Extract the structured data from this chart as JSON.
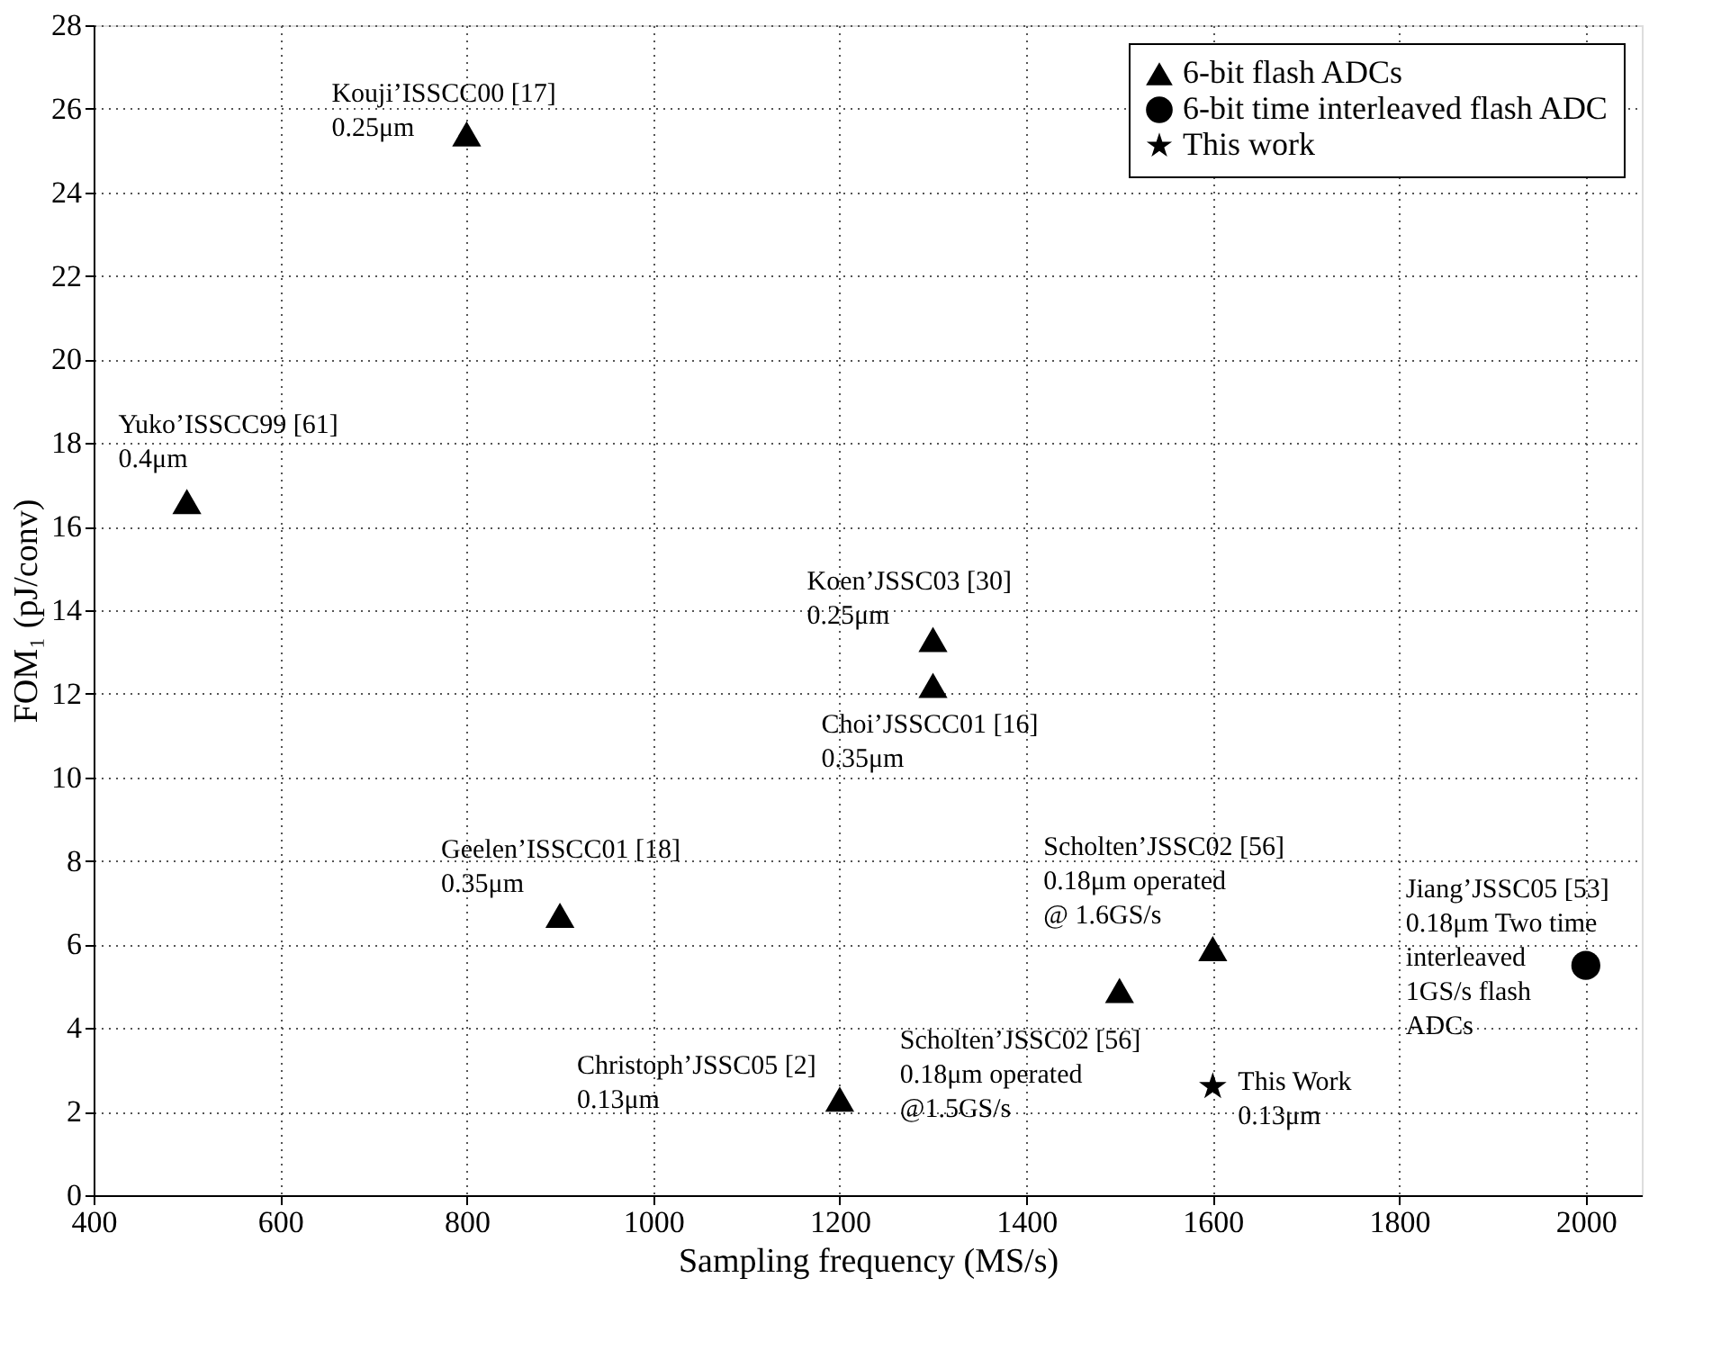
{
  "chart_data": {
    "type": "scatter",
    "xlabel": "Sampling frequency (MS/s)",
    "ylabel": "FOM₁ (pJ/conv)",
    "xlim": [
      400,
      2060
    ],
    "xticks": [
      400,
      600,
      800,
      1000,
      1200,
      1400,
      1600,
      1800,
      2000
    ],
    "ylim": [
      0,
      28
    ],
    "yticks": [
      0,
      2,
      4,
      6,
      8,
      10,
      12,
      14,
      16,
      18,
      20,
      22,
      24,
      26,
      28
    ],
    "grid": true,
    "legend": "top right",
    "series": [
      {
        "name": "6-bit flash ADCs",
        "color": "#000000",
        "marker": "triangle",
        "x": [
          500,
          800,
          900,
          1200,
          1300,
          1300,
          1500,
          1600
        ],
        "values": [
          16.6,
          25.4,
          6.7,
          2.3,
          13.3,
          12.2,
          4.9,
          5.9
        ]
      },
      {
        "name": "6-bit time interleaved flash ADC",
        "color": "#000000",
        "marker": "circle",
        "x": [
          2000
        ],
        "values": [
          5.5
        ]
      },
      {
        "name": "This work",
        "color": "#000000",
        "marker": "star",
        "x": [
          1600
        ],
        "values": [
          2.6
        ]
      }
    ],
    "annotations": [
      {
        "text": "Kouji’ISSCC00 [17]\n0.25μm",
        "x": 800,
        "y": 25.4
      },
      {
        "text": "Yuko’ISSCC99 [61]\n0.4μm",
        "x": 500,
        "y": 16.6
      },
      {
        "text": "Koen’JSSC03 [30]\n0.25μm",
        "x": 1300,
        "y": 13.3
      },
      {
        "text": "Choi’JSSCC01 [16]\n0.35μm",
        "x": 1300,
        "y": 12.2
      },
      {
        "text": "Geelen’ISSCC01 [18]\n0.35μm",
        "x": 900,
        "y": 6.7
      },
      {
        "text": "Christoph’JSSC05 [2]\n0.13μm",
        "x": 1200,
        "y": 2.3
      },
      {
        "text": "Scholten’JSSC02 [56]\n0.18μm operated\n@1.5GS/s",
        "x": 1500,
        "y": 4.9
      },
      {
        "text": "Scholten’JSSC02 [56]\n0.18μm operated\n@ 1.6GS/s",
        "x": 1600,
        "y": 5.9
      },
      {
        "text": "This Work\n0.13μm",
        "x": 1600,
        "y": 2.6
      },
      {
        "text": "Jiang’JSSC05 [53]\n0.18μm Two time\ninterleaved\n1GS/s flash\nADCs",
        "x": 2000,
        "y": 5.5
      }
    ]
  }
}
